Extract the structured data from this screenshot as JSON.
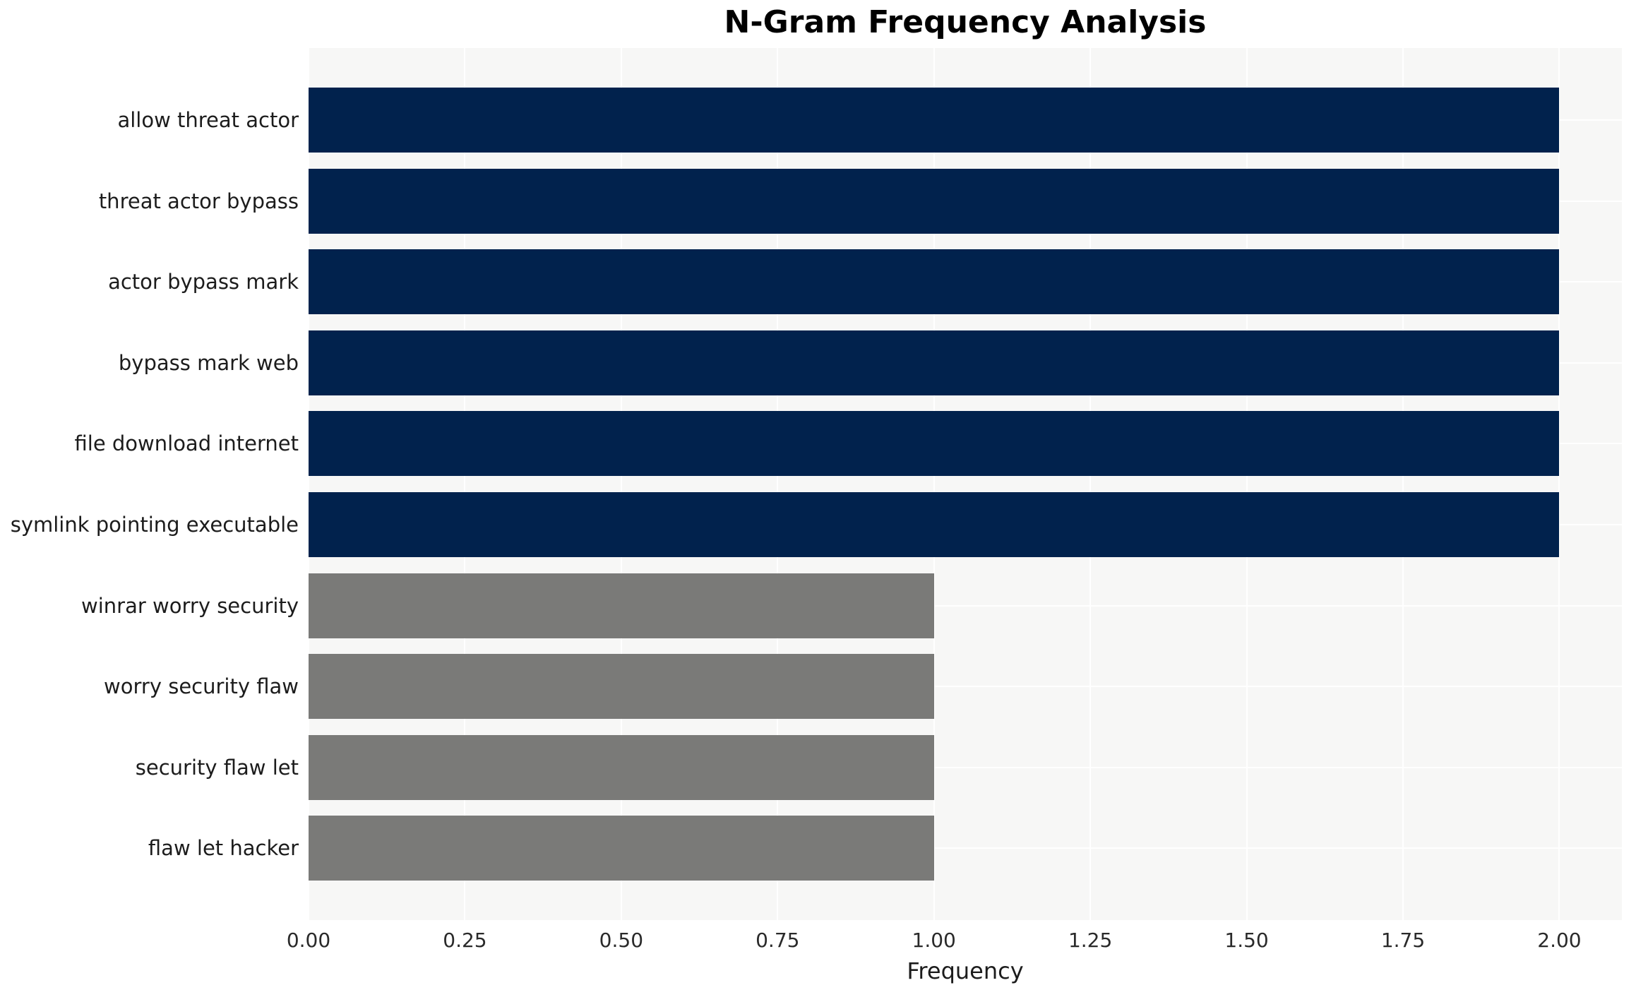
{
  "chart_data": {
    "type": "bar",
    "orientation": "horizontal",
    "title": "N-Gram Frequency Analysis",
    "xlabel": "Frequency",
    "ylabel": "",
    "categories": [
      "allow threat actor",
      "threat actor bypass",
      "actor bypass mark",
      "bypass mark web",
      "file download internet",
      "symlink pointing executable",
      "winrar worry security",
      "worry security flaw",
      "security flaw let",
      "flaw let hacker"
    ],
    "values": [
      2,
      2,
      2,
      2,
      2,
      2,
      1,
      1,
      1,
      1
    ],
    "bar_colors": [
      "#01224d",
      "#01224d",
      "#01224d",
      "#01224d",
      "#01224d",
      "#01224d",
      "#7a7a78",
      "#7a7a78",
      "#7a7a78",
      "#7a7a78"
    ],
    "xlim": [
      0,
      2.1
    ],
    "xticks": [
      0,
      0.25,
      0.5,
      0.75,
      1.0,
      1.25,
      1.5,
      1.75,
      2.0
    ],
    "xtick_labels": [
      "0.00",
      "0.25",
      "0.50",
      "0.75",
      "1.00",
      "1.25",
      "1.50",
      "1.75",
      "2.00"
    ],
    "grid": true,
    "legend": false,
    "colors": {
      "high_bar": "#01224d",
      "low_bar": "#7a7a78",
      "plot_background": "#f7f7f6",
      "grid_line": "#ffffff",
      "page_background": "#ffffff",
      "text": "#1c1c1c"
    }
  }
}
